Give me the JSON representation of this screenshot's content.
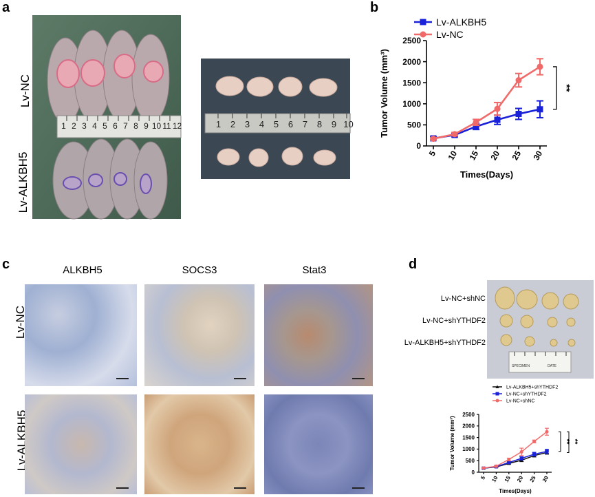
{
  "panels": {
    "a": {
      "label": "a",
      "group_top": "Lv-NC",
      "group_bottom": "Lv-ALKBH5",
      "ruler_left": [
        "1",
        "2",
        "3",
        "4",
        "5",
        "6",
        "7",
        "8",
        "9",
        "10",
        "11",
        "12"
      ],
      "ruler_right": [
        "1",
        "2",
        "3",
        "4",
        "5",
        "6",
        "7",
        "8",
        "9",
        "10"
      ]
    },
    "b": {
      "label": "b"
    },
    "c": {
      "label": "c",
      "columns": [
        "ALKBH5",
        "SOCS3",
        "Stat3"
      ],
      "rows": [
        "Lv-NC",
        "Lv-ALKBH5"
      ]
    },
    "d": {
      "label": "d",
      "photo_rows": [
        "Lv-NC+shNC",
        "Lv-NC+shYTHDF2",
        "Lv-ALKBH5+shYTHDF2"
      ],
      "specimen_label": "SPECIMEN",
      "date_label": "DATE"
    }
  },
  "colors": {
    "blue": "#1a22d9",
    "red": "#f06a6a",
    "black": "#111111"
  },
  "chart_data": [
    {
      "type": "line",
      "xlabel": "Times(Days)",
      "ylabel": "Tumor Volume (mm³)",
      "x": [
        5,
        10,
        15,
        20,
        25,
        30
      ],
      "ylim": [
        0,
        2500
      ],
      "yticks": [
        0,
        500,
        1000,
        1500,
        2000,
        2500
      ],
      "legend_position": "top-left",
      "series": [
        {
          "name": "Lv-ALKBH5",
          "color": "#1a22d9",
          "values": [
            180,
            260,
            460,
            620,
            760,
            870
          ],
          "errors": [
            30,
            40,
            70,
            110,
            130,
            200
          ]
        },
        {
          "name": "Lv-NC",
          "color": "#f06a6a",
          "values": [
            170,
            280,
            560,
            880,
            1560,
            1880
          ],
          "errors": [
            25,
            40,
            70,
            150,
            160,
            190
          ]
        }
      ],
      "significance": "**"
    },
    {
      "type": "line",
      "xlabel": "Times(Days)",
      "ylabel": "Tumor Volume (mm³)",
      "x": [
        5,
        10,
        15,
        20,
        25,
        30
      ],
      "ylim": [
        0,
        2500
      ],
      "yticks": [
        0,
        500,
        1000,
        1500,
        2000,
        2500
      ],
      "legend_position": "top",
      "series": [
        {
          "name": "Lv-ALKBH5+shYTHDF2",
          "color": "#111111",
          "values": [
            170,
            230,
            380,
            520,
            720,
            850
          ],
          "errors": [
            20,
            30,
            40,
            60,
            60,
            70
          ]
        },
        {
          "name": "Lv-NC+shYTHDF2",
          "color": "#1a22d9",
          "values": [
            175,
            240,
            420,
            600,
            780,
            900
          ],
          "errors": [
            20,
            30,
            50,
            70,
            80,
            90
          ]
        },
        {
          "name": "Lv-NC+shNC",
          "color": "#f06a6a",
          "values": [
            180,
            260,
            550,
            880,
            1330,
            1750
          ],
          "errors": [
            20,
            40,
            60,
            160,
            60,
            150
          ]
        }
      ],
      "significance": [
        "**",
        "**"
      ]
    }
  ]
}
